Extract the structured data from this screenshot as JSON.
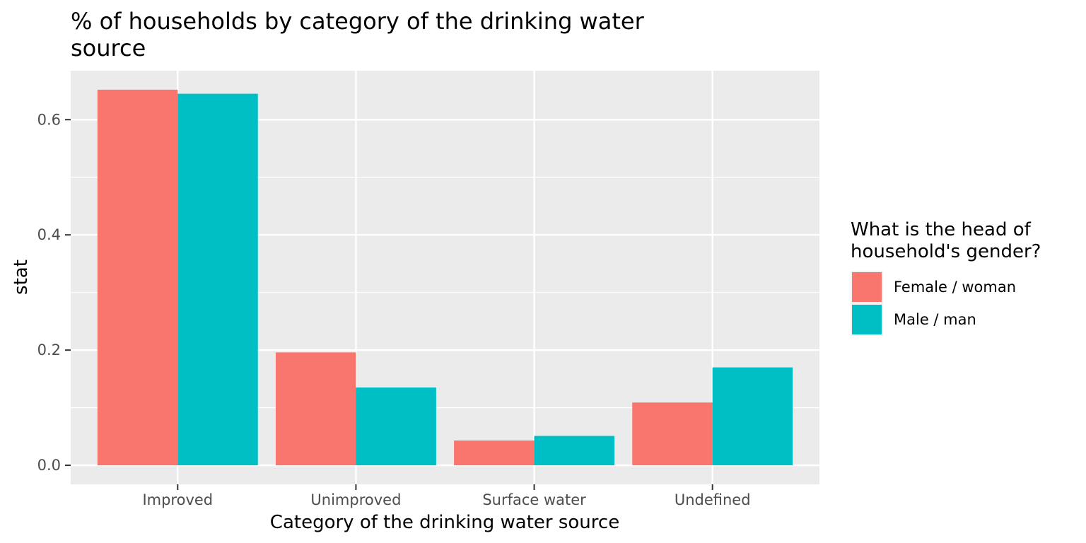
{
  "chart_data": {
    "type": "bar",
    "title_lines": [
      "% of households by category of the drinking water",
      "source"
    ],
    "xlabel": "Category of the drinking water source",
    "ylabel": "stat",
    "categories": [
      "Improved",
      "Unimproved",
      "Surface water",
      "Undefined"
    ],
    "series": [
      {
        "name": "Female / woman",
        "color": "#F8766D",
        "values": [
          0.652,
          0.196,
          0.043,
          0.109
        ]
      },
      {
        "name": "Male / man",
        "color": "#00BFC4",
        "values": [
          0.645,
          0.135,
          0.051,
          0.17
        ]
      }
    ],
    "ylim": [
      -0.033,
      0.685
    ],
    "yticks": [
      0.0,
      0.2,
      0.4,
      0.6
    ],
    "ytick_labels": [
      "0.0",
      "0.2",
      "0.4",
      "0.6"
    ],
    "grid": true,
    "panel_background": "#EBEBEB",
    "grid_color": "#FFFFFF",
    "legend": {
      "title_lines": [
        "What is the head of",
        "household's gender?"
      ],
      "position": "right"
    }
  }
}
